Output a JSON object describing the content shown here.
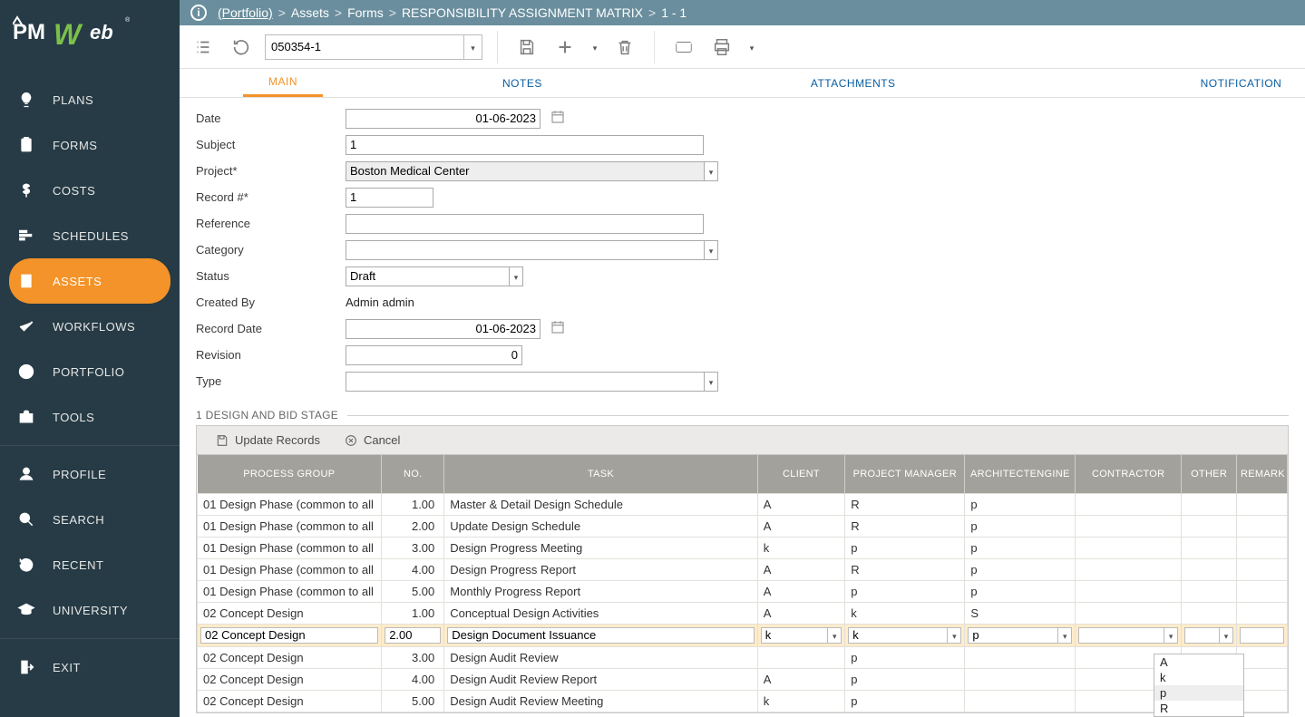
{
  "logo": {
    "text": "PMWeb"
  },
  "sidebar": {
    "items": [
      {
        "label": "PLANS",
        "active": false
      },
      {
        "label": "FORMS",
        "active": false
      },
      {
        "label": "COSTS",
        "active": false
      },
      {
        "label": "SCHEDULES",
        "active": false
      },
      {
        "label": "ASSETS",
        "active": true
      },
      {
        "label": "WORKFLOWS",
        "active": false
      },
      {
        "label": "PORTFOLIO",
        "active": false
      },
      {
        "label": "TOOLS",
        "active": false
      }
    ],
    "user_items": [
      {
        "label": "PROFILE"
      },
      {
        "label": "SEARCH"
      },
      {
        "label": "RECENT"
      },
      {
        "label": "UNIVERSITY"
      }
    ],
    "exit_label": "EXIT"
  },
  "breadcrumb": {
    "portfolio": "(Portfolio)",
    "parts": [
      "Assets",
      "Forms",
      "RESPONSIBILITY ASSIGNMENT MATRIX",
      "1 - 1"
    ]
  },
  "toolbar": {
    "record_no": "050354-1"
  },
  "tabs": [
    {
      "label": "MAIN",
      "active": true
    },
    {
      "label": "NOTES"
    },
    {
      "label": "ATTACHMENTS"
    },
    {
      "label": "NOTIFICATION"
    }
  ],
  "form": {
    "labels": {
      "date": "Date",
      "subject": "Subject",
      "project": "Project*",
      "record_no": "Record #*",
      "reference": "Reference",
      "category": "Category",
      "status": "Status",
      "created_by": "Created By",
      "record_date": "Record Date",
      "revision": "Revision",
      "type": "Type"
    },
    "values": {
      "date": "01-06-2023",
      "subject": "1",
      "project": "Boston Medical Center",
      "record_no": "1",
      "reference": "",
      "category": "",
      "status": "Draft",
      "created_by": "Admin admin",
      "record_date": "01-06-2023",
      "revision": "0",
      "type": ""
    }
  },
  "section": {
    "title": "1 DESIGN AND BID STAGE"
  },
  "table": {
    "toolbar": {
      "update": "Update Records",
      "cancel": "Cancel"
    },
    "columns": [
      "PROCESS GROUP",
      "NO.",
      "TASK",
      "CLIENT",
      "PROJECT MANAGER",
      "ARCHITECTENGINE",
      "CONTRACTOR",
      "OTHER",
      "REMARK"
    ],
    "rows": [
      {
        "pg": "01 Design Phase (common to all",
        "no": "1.00",
        "task": "Master & Detail Design Schedule",
        "cl": "A",
        "pm": "R",
        "ae": "p",
        "co": "",
        "ot": "",
        "rm": ""
      },
      {
        "pg": "01 Design Phase (common to all",
        "no": "2.00",
        "task": "Update Design Schedule",
        "cl": "A",
        "pm": "R",
        "ae": "p",
        "co": "",
        "ot": "",
        "rm": ""
      },
      {
        "pg": "01 Design Phase (common to all",
        "no": "3.00",
        "task": "Design Progress Meeting",
        "cl": "k",
        "pm": "p",
        "ae": "p",
        "co": "",
        "ot": "",
        "rm": ""
      },
      {
        "pg": "01 Design Phase (common to all",
        "no": "4.00",
        "task": "Design Progress Report",
        "cl": "A",
        "pm": "R",
        "ae": "p",
        "co": "",
        "ot": "",
        "rm": ""
      },
      {
        "pg": "01 Design Phase (common to all",
        "no": "5.00",
        "task": "Monthly Progress Report",
        "cl": "A",
        "pm": "p",
        "ae": "p",
        "co": "",
        "ot": "",
        "rm": ""
      },
      {
        "pg": "02 Concept Design",
        "no": "1.00",
        "task": "Conceptual Design Activities",
        "cl": "A",
        "pm": "k",
        "ae": "S",
        "co": "",
        "ot": "",
        "rm": ""
      },
      {
        "editable": true,
        "pg": "02 Concept Design",
        "no": "2.00",
        "task": "Design Document Issuance",
        "cl": "k",
        "pm": "k",
        "ae": "p",
        "co": "",
        "ot": "",
        "rm": ""
      },
      {
        "pg": "02 Concept Design",
        "no": "3.00",
        "task": "Design Audit Review",
        "cl": "",
        "pm": "p",
        "ae": "",
        "co": "",
        "ot": "",
        "rm": ""
      },
      {
        "pg": "02 Concept Design",
        "no": "4.00",
        "task": "Design Audit Review Report",
        "cl": "A",
        "pm": "p",
        "ae": "",
        "co": "",
        "ot": "",
        "rm": ""
      },
      {
        "pg": "02 Concept Design",
        "no": "5.00",
        "task": "Design Audit Review Meeting",
        "cl": "k",
        "pm": "p",
        "ae": "",
        "co": "",
        "ot": "",
        "rm": ""
      }
    ],
    "ae_dropdown": {
      "options": [
        "A",
        "k",
        "p",
        "R"
      ],
      "highlight": "p"
    }
  },
  "colors": {
    "sidebar_bg": "#263b45",
    "accent": "#f39329",
    "breadcrumb_bg": "#6a8e9d",
    "tab_link": "#0a5ea2",
    "th_bg": "#a3a19b",
    "edit_row_bg": "#ffeccb"
  }
}
